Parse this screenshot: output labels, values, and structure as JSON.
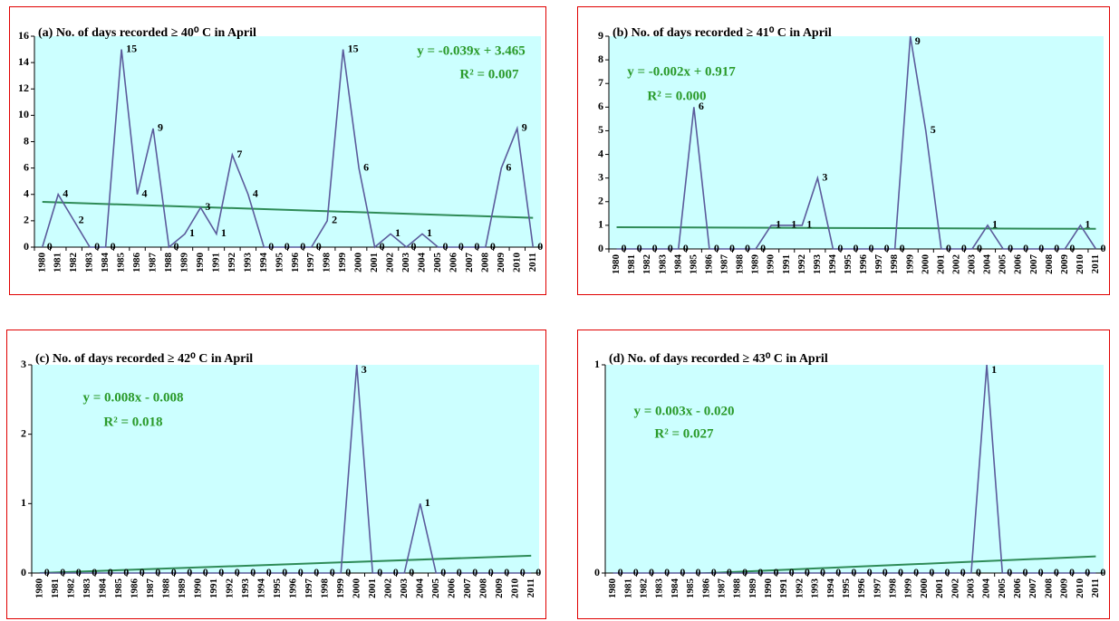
{
  "chart_data": [
    {
      "type": "line",
      "title": "(a) No. of days recorded ≥ 40⁰ C in April",
      "categories": [
        "1980",
        "1981",
        "1982",
        "1983",
        "1984",
        "1985",
        "1986",
        "1987",
        "1988",
        "1989",
        "1990",
        "1991",
        "1992",
        "1993",
        "1994",
        "1995",
        "1996",
        "1997",
        "1998",
        "1999",
        "2000",
        "2001",
        "2002",
        "2003",
        "2004",
        "2005",
        "2006",
        "2007",
        "2008",
        "2009",
        "2010",
        "2011"
      ],
      "values": [
        0,
        4,
        2,
        0,
        0,
        15,
        4,
        9,
        0,
        1,
        3,
        1,
        7,
        4,
        0,
        0,
        0,
        0,
        2,
        15,
        6,
        0,
        1,
        0,
        1,
        0,
        0,
        0,
        0,
        6,
        9,
        0
      ],
      "color": "#5b5b9b",
      "data_labels": true,
      "trendline": {
        "color": "#2e8b57",
        "values": [
          3.43,
          2.22
        ]
      },
      "annotations": [
        "y = -0.039x + 3.465",
        "R² = 0.007"
      ],
      "ylim": [
        0,
        16
      ],
      "yticks": [
        0,
        2,
        4,
        6,
        8,
        10,
        12,
        14,
        16
      ],
      "grid": false,
      "background": "#ccffff"
    },
    {
      "type": "line",
      "title": "(b) No. of days recorded ≥ 41⁰ C in April",
      "categories": [
        "1980",
        "1981",
        "1982",
        "1983",
        "1984",
        "1985",
        "1986",
        "1987",
        "1988",
        "1989",
        "1990",
        "1991",
        "1992",
        "1993",
        "1994",
        "1995",
        "1996",
        "1997",
        "1998",
        "1999",
        "2000",
        "2001",
        "2002",
        "2003",
        "2004",
        "2005",
        "2006",
        "2007",
        "2008",
        "2009",
        "2010",
        "2011"
      ],
      "values": [
        0,
        0,
        0,
        0,
        0,
        6,
        0,
        0,
        0,
        0,
        1,
        1,
        1,
        3,
        0,
        0,
        0,
        0,
        0,
        9,
        5,
        0,
        0,
        0,
        1,
        0,
        0,
        0,
        0,
        0,
        1,
        0
      ],
      "color": "#5b5b9b",
      "data_labels": true,
      "trendline": {
        "color": "#2e8b57",
        "values": [
          0.92,
          0.85
        ]
      },
      "annotations": [
        "y = -0.002x + 0.917",
        "R² = 0.000"
      ],
      "ylim": [
        0,
        9
      ],
      "yticks": [
        0,
        1,
        2,
        3,
        4,
        5,
        6,
        7,
        8,
        9
      ],
      "grid": false,
      "background": "#ccffff"
    },
    {
      "type": "line",
      "title": "(c) No. of days recorded ≥ 42⁰ C in April",
      "categories": [
        "1980",
        "1981",
        "1982",
        "1983",
        "1984",
        "1985",
        "1986",
        "1987",
        "1988",
        "1989",
        "1990",
        "1991",
        "1992",
        "1993",
        "1994",
        "1995",
        "1996",
        "1997",
        "1998",
        "1999",
        "2000",
        "2001",
        "2002",
        "2003",
        "2004",
        "2005",
        "2006",
        "2007",
        "2008",
        "2009",
        "2010",
        "2011"
      ],
      "values": [
        0,
        0,
        0,
        0,
        0,
        0,
        0,
        0,
        0,
        0,
        0,
        0,
        0,
        0,
        0,
        0,
        0,
        0,
        0,
        0,
        3,
        0,
        0,
        0,
        1,
        0,
        0,
        0,
        0,
        0,
        0,
        0
      ],
      "color": "#5b5b9b",
      "data_labels": true,
      "trendline": {
        "color": "#2e8b57",
        "values": [
          0.0,
          0.25
        ]
      },
      "annotations": [
        "y = 0.008x - 0.008",
        "R² = 0.018"
      ],
      "ylim": [
        0,
        3
      ],
      "yticks": [
        0,
        1,
        2,
        3
      ],
      "grid": false,
      "background": "#ccffff"
    },
    {
      "type": "line",
      "title": "(d) No. of days recorded ≥ 43⁰ C in April",
      "categories": [
        "1980",
        "1981",
        "1982",
        "1983",
        "1984",
        "1985",
        "1986",
        "1987",
        "1988",
        "1989",
        "1990",
        "1991",
        "1992",
        "1993",
        "1994",
        "1995",
        "1996",
        "1997",
        "1998",
        "1999",
        "2000",
        "2001",
        "2002",
        "2003",
        "2004",
        "2005",
        "2006",
        "2007",
        "2008",
        "2009",
        "2010",
        "2011"
      ],
      "values": [
        0,
        0,
        0,
        0,
        0,
        0,
        0,
        0,
        0,
        0,
        0,
        0,
        0,
        0,
        0,
        0,
        0,
        0,
        0,
        0,
        0,
        0,
        0,
        0,
        1,
        0,
        0,
        0,
        0,
        0,
        0,
        0
      ],
      "color": "#5b5b9b",
      "data_labels": true,
      "trendline": {
        "color": "#2e8b57",
        "values": [
          -0.02,
          0.08
        ]
      },
      "annotations": [
        "y = 0.003x - 0.020",
        "R² = 0.027"
      ],
      "ylim": [
        0,
        1
      ],
      "yticks": [
        0,
        1
      ],
      "grid": false,
      "background": "#ccffff"
    }
  ]
}
